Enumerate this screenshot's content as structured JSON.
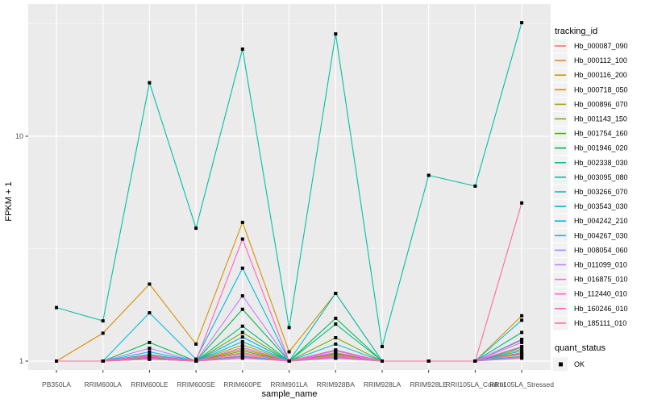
{
  "chart_data": {
    "type": "line",
    "title": "",
    "xlabel": "sample_name",
    "ylabel": "FPKM + 1",
    "y_scale": "log10",
    "y_ticks": [
      1,
      10
    ],
    "y_minor_ticks": [
      3.1623,
      31.623
    ],
    "ylim": [
      0.92,
      38.5
    ],
    "grid": "on",
    "legend_position": "right",
    "legend_title": "tracking_id",
    "point_legend_title": "quant_status",
    "point_legend_label": "OK",
    "point_shape": "filled-square",
    "categories": [
      "PB350LA",
      "RRIM600LA",
      "RRIM600LE",
      "RRIM600SE",
      "RRIM600PE",
      "RRIM901LA",
      "RRIM928BA",
      "RRIM928LA",
      "RRIM928LE",
      "RRII105LA_Control",
      "RRII105LA_Stressed"
    ],
    "series": [
      {
        "name": "Hb_000087_090",
        "color": "#F8766D",
        "values": [
          1,
          1,
          1.02,
          1,
          1.06,
          1,
          1.03,
          1,
          1,
          1,
          1.03
        ]
      },
      {
        "name": "Hb_000112_100",
        "color": "#EA8331",
        "values": [
          1,
          1,
          1.04,
          1,
          1.08,
          1,
          1.05,
          1,
          1,
          1,
          1.05
        ]
      },
      {
        "name": "Hb_000116_200",
        "color": "#D89000",
        "values": [
          1,
          1.33,
          2.2,
          1.19,
          4.14,
          1.1,
          2.0,
          1,
          1,
          1,
          1.59
        ]
      },
      {
        "name": "Hb_000718_050",
        "color": "#C09B00",
        "values": [
          1,
          1,
          1.03,
          1,
          1.13,
          1,
          1.07,
          1,
          1,
          1,
          1.07
        ]
      },
      {
        "name": "Hb_000896_070",
        "color": "#A3A500",
        "values": [
          1,
          1,
          1.04,
          1,
          1.18,
          1,
          1.09,
          1,
          1,
          1,
          1.09
        ]
      },
      {
        "name": "Hb_001143_150",
        "color": "#7CAE00",
        "values": [
          1,
          1,
          1.06,
          1,
          1.34,
          1,
          1.27,
          1,
          1,
          1,
          1.13
        ]
      },
      {
        "name": "Hb_001754_160",
        "color": "#39B600",
        "values": [
          1,
          1,
          1.04,
          1,
          1.11,
          1,
          1.08,
          1,
          1,
          1,
          1.08
        ]
      },
      {
        "name": "Hb_001946_020",
        "color": "#00BB4E",
        "values": [
          1,
          1,
          1.21,
          1,
          1.7,
          1,
          1.55,
          1,
          1,
          1,
          1.24
        ]
      },
      {
        "name": "Hb_002338_030",
        "color": "#00BF7D",
        "values": [
          1,
          1,
          1.07,
          1,
          1.43,
          1,
          1.46,
          1,
          1,
          1,
          1.34
        ]
      },
      {
        "name": "Hb_003095_080",
        "color": "#00C1A3",
        "values": [
          1.73,
          1.51,
          17.3,
          3.9,
          24.4,
          1.41,
          28.5,
          1.16,
          6.7,
          6.0,
          32.0
        ]
      },
      {
        "name": "Hb_003266_070",
        "color": "#00BFC4",
        "values": [
          1,
          1,
          1.05,
          1,
          1.22,
          1,
          2.0,
          1,
          1,
          1,
          1.15
        ]
      },
      {
        "name": "Hb_003543_030",
        "color": "#00BAE0",
        "values": [
          1,
          1,
          1.64,
          1.02,
          2.59,
          1,
          1.19,
          1,
          1,
          1,
          1.52
        ]
      },
      {
        "name": "Hb_004242_210",
        "color": "#00B0F6",
        "values": [
          1,
          1,
          1.1,
          1,
          1.28,
          1,
          1.12,
          1,
          1,
          1,
          1.11
        ]
      },
      {
        "name": "Hb_004267_030",
        "color": "#35A2FF",
        "values": [
          1,
          1,
          1.02,
          1,
          1.05,
          1,
          1.04,
          1,
          1,
          1,
          1.05
        ]
      },
      {
        "name": "Hb_008054_060",
        "color": "#9590FF",
        "values": [
          1,
          1,
          1.02,
          1,
          1.04,
          1,
          1.03,
          1,
          1,
          1,
          1.04
        ]
      },
      {
        "name": "Hb_011099_010",
        "color": "#C77CFF",
        "values": [
          1,
          1,
          1.14,
          1,
          1.95,
          1,
          1.11,
          1,
          1,
          1,
          1.25
        ]
      },
      {
        "name": "Hb_016875_010",
        "color": "#E76BF3",
        "values": [
          1,
          1,
          1.05,
          1,
          1.15,
          1,
          1.09,
          1,
          1,
          1,
          1.21
        ]
      },
      {
        "name": "Hb_112440_010",
        "color": "#FA62DB",
        "values": [
          1,
          1,
          1.03,
          1,
          1.09,
          1,
          1.06,
          1,
          1,
          1,
          1.08
        ]
      },
      {
        "name": "Hb_160246_010",
        "color": "#FF62BC",
        "values": [
          1,
          1,
          1.06,
          1,
          3.49,
          1,
          1.12,
          1,
          1,
          1,
          1.16
        ]
      },
      {
        "name": "Hb_185111_010",
        "color": "#FF6A98",
        "values": [
          1,
          1,
          1.02,
          1,
          1.03,
          1,
          1.04,
          1,
          1,
          1,
          5.05
        ]
      }
    ]
  },
  "colors": {
    "panel_background": "#EBEBEB",
    "gridline": "#FFFFFF",
    "legend_key_background": "#F2F2F2",
    "point": "#000000",
    "tick_mark": "#333333",
    "tick_label": "#4D4D4D",
    "axis_title": "#000000",
    "legend_text": "#000000"
  }
}
